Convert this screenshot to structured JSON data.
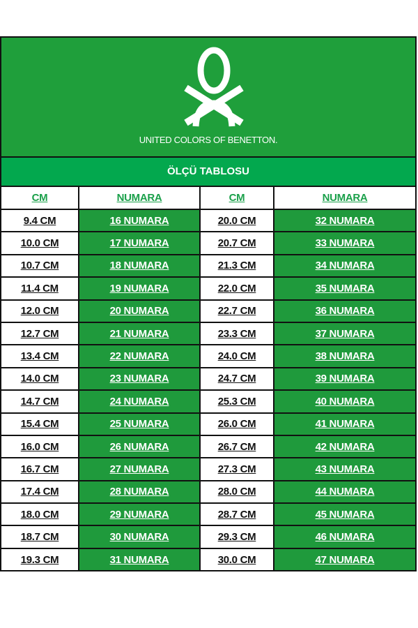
{
  "logo": {
    "brand_text": "UNITED COLORS OF BENETTON.",
    "color": "#1f9f3b"
  },
  "title": "ÖLÇÜ TABLOSU",
  "table": {
    "headers": [
      "CM",
      "NUMARA",
      "CM",
      "NUMARA"
    ],
    "rows": [
      [
        "9.4 CM",
        "16 NUMARA",
        "20.0 CM",
        "32 NUMARA"
      ],
      [
        "10.0 CM",
        "17 NUMARA",
        "20.7 CM",
        "33 NUMARA"
      ],
      [
        "10.7 CM",
        "18 NUMARA",
        "21.3 CM",
        "34 NUMARA"
      ],
      [
        "11.4 CM",
        "19 NUMARA",
        "22.0 CM",
        "35 NUMARA"
      ],
      [
        "12.0 CM",
        "20 NUMARA",
        "22.7 CM",
        "36 NUMARA"
      ],
      [
        "12.7 CM",
        "21 NUMARA",
        "23.3 CM",
        "37 NUMARA"
      ],
      [
        "13.4 CM",
        "22 NUMARA",
        "24.0 CM",
        "38 NUMARA"
      ],
      [
        "14.0 CM",
        "23 NUMARA",
        "24.7 CM",
        "39 NUMARA"
      ],
      [
        "14.7 CM",
        "24 NUMARA",
        "25.3 CM",
        "40 NUMARA"
      ],
      [
        "15.4 CM",
        "25 NUMARA",
        "26.0 CM",
        "41 NUMARA"
      ],
      [
        "16.0 CM",
        "26 NUMARA",
        "26.7 CM",
        "42 NUMARA"
      ],
      [
        "16.7 CM",
        "27 NUMARA",
        "27.3 CM",
        "43 NUMARA"
      ],
      [
        "17.4 CM",
        "28 NUMARA",
        "28.0 CM",
        "44 NUMARA"
      ],
      [
        "18.0 CM",
        "29 NUMARA",
        "28.7 CM",
        "45 NUMARA"
      ],
      [
        "18.7 CM",
        "30 NUMARA",
        "29.3 CM",
        "46 NUMARA"
      ],
      [
        "19.3 CM",
        "31 NUMARA",
        "30.0 CM",
        "47 NUMARA"
      ]
    ]
  }
}
